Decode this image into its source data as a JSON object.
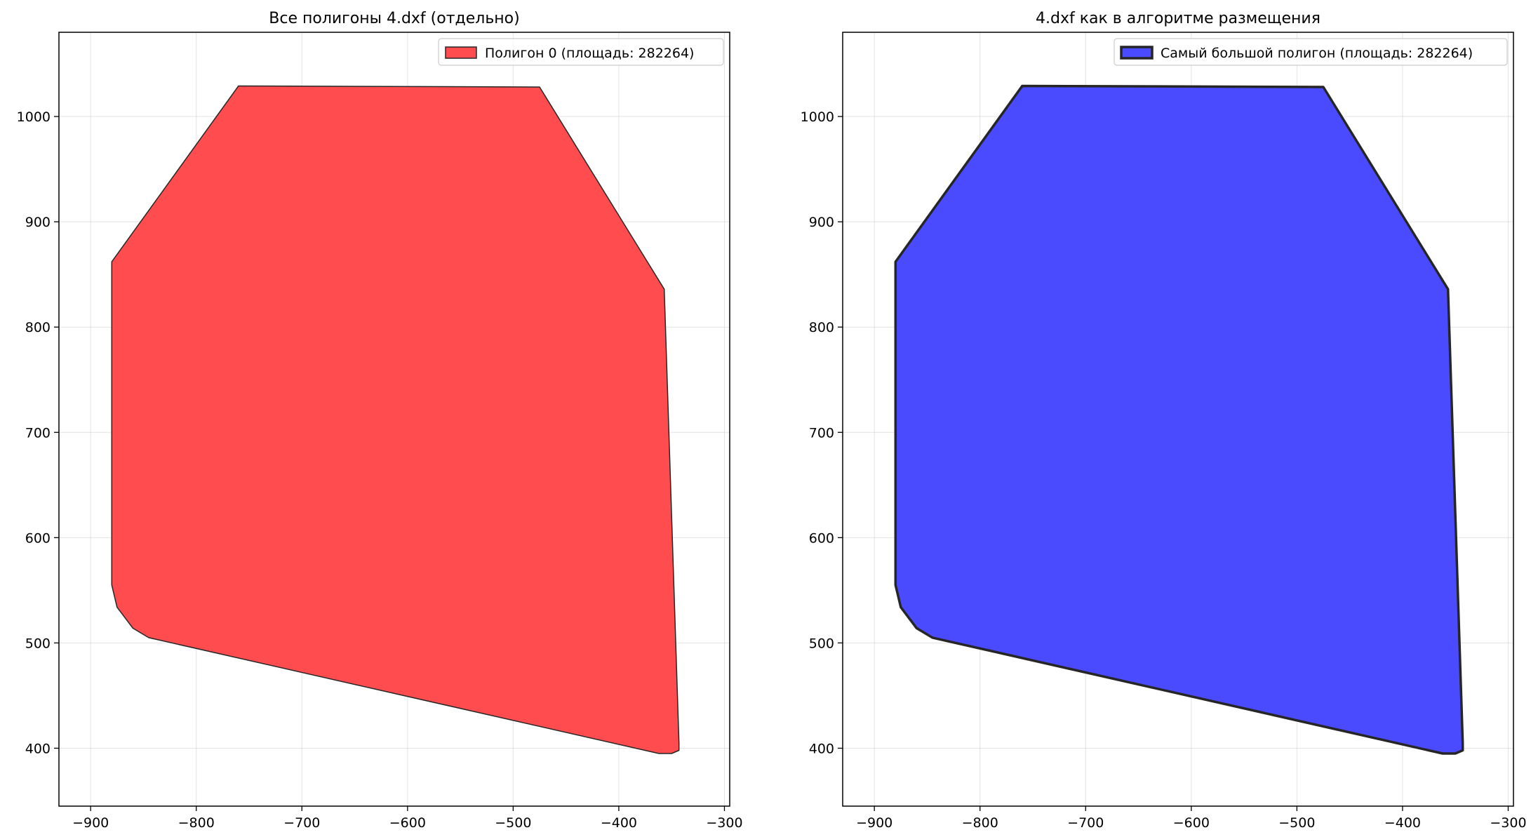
{
  "chart_data": [
    {
      "type": "area",
      "title": "Все полигоны 4.dxf (отдельно)",
      "xlabel": "",
      "ylabel": "",
      "xlim": [
        -930,
        -295
      ],
      "ylim": [
        345,
        1080
      ],
      "xticks": [
        -900,
        -800,
        -700,
        -600,
        -500,
        -400,
        -300
      ],
      "xtick_labels": [
        "−900",
        "−800",
        "−700",
        "−600",
        "−500",
        "−400",
        "−300"
      ],
      "yticks": [
        400,
        500,
        600,
        700,
        800,
        900,
        1000
      ],
      "ytick_labels": [
        "400",
        "500",
        "600",
        "700",
        "800",
        "900",
        "1000"
      ],
      "grid": true,
      "legend_position": "top-right",
      "series": [
        {
          "name": "Полигон 0 (площадь: 282264)",
          "fill_color": "#ff4d4f",
          "edge_color": "#262626",
          "edge_width": 1.5,
          "x": [
            -760,
            -475,
            -357,
            -343,
            -343,
            -350,
            -362,
            -845,
            -860,
            -875,
            -880,
            -880,
            -880
          ],
          "y": [
            1029,
            1028,
            836,
            405,
            398,
            395,
            395,
            505,
            514,
            534,
            555,
            580,
            862
          ]
        }
      ]
    },
    {
      "type": "area",
      "title": "4.dxf как в алгоритме размещения",
      "xlabel": "",
      "ylabel": "",
      "xlim": [
        -930,
        -295
      ],
      "ylim": [
        345,
        1080
      ],
      "xticks": [
        -900,
        -800,
        -700,
        -600,
        -500,
        -400,
        -300
      ],
      "xtick_labels": [
        "−900",
        "−800",
        "−700",
        "−600",
        "−500",
        "−400",
        "−300"
      ],
      "yticks": [
        400,
        500,
        600,
        700,
        800,
        900,
        1000
      ],
      "ytick_labels": [
        "400",
        "500",
        "600",
        "700",
        "800",
        "900",
        "1000"
      ],
      "grid": true,
      "legend_position": "top-right",
      "series": [
        {
          "name": "Самый большой полигон (площадь: 282264)",
          "fill_color": "#4a4aff",
          "edge_color": "#262626",
          "edge_width": 3.5,
          "x": [
            -760,
            -475,
            -357,
            -343,
            -343,
            -350,
            -362,
            -845,
            -860,
            -875,
            -880,
            -880,
            -880
          ],
          "y": [
            1029,
            1028,
            836,
            405,
            398,
            395,
            395,
            505,
            514,
            534,
            555,
            580,
            862
          ]
        }
      ]
    }
  ]
}
